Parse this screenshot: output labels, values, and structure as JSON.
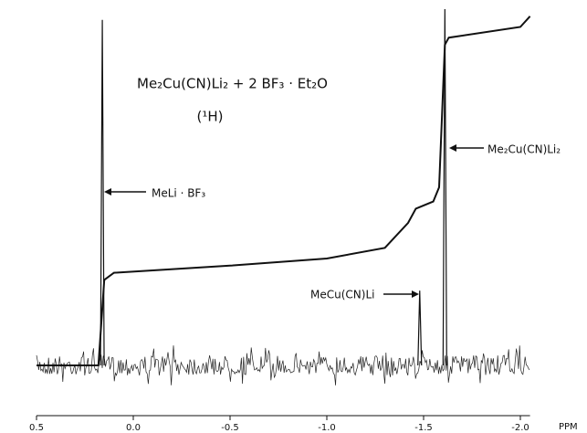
{
  "chart_data": {
    "type": "line",
    "title": "Me₂Cu(CN)Li₂ + 2 BF₃ · Et₂O",
    "subtitle": "(¹H)",
    "x_label": "PPM",
    "xlim": [
      0.5,
      -2.05
    ],
    "xticks": [
      0.5,
      {
        "value": 0,
        "label": "0.0"
      },
      -0.5,
      {
        "value": -1,
        "label": "-1.0"
      },
      -1.5,
      {
        "value": -2,
        "label": "-2.0"
      }
    ],
    "ylim": [
      0,
      100
    ],
    "peaks": {
      "x": [
        0.16,
        -1.48,
        -1.61
      ],
      "values": [
        97,
        21,
        100
      ],
      "color": "#111111"
    },
    "integral": {
      "x": [
        0.5,
        0.18,
        0.15,
        0.1,
        -0.5,
        -1.0,
        -1.3,
        -1.42,
        -1.46,
        -1.55,
        -1.58,
        -1.61,
        -1.63,
        -2.0,
        -2.05
      ],
      "values": [
        0,
        0,
        24,
        26,
        28,
        30,
        33,
        40,
        44,
        46,
        50,
        90,
        92,
        95,
        98
      ],
      "color": "#111111"
    },
    "annotations": [
      "MeLi · BF₃",
      "MeCu(CN)Li",
      "Me₂Cu(CN)Li₂"
    ]
  }
}
